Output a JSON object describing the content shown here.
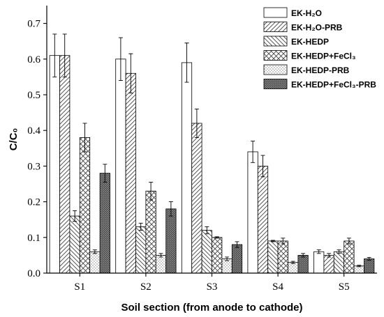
{
  "chart_data": {
    "type": "bar",
    "xlabel": "Soil section (from anode to cathode)",
    "ylabel": "C/C₀",
    "ylim": [
      0,
      0.75
    ],
    "yticks": [
      "0.0",
      "0.1",
      "0.2",
      "0.3",
      "0.4",
      "0.5",
      "0.6",
      "0.7"
    ],
    "categories": [
      "S1",
      "S2",
      "S3",
      "S4",
      "S5"
    ],
    "legend_position": "top-right",
    "series": [
      {
        "name": "EK-H₂O",
        "pattern": "none",
        "values": [
          0.61,
          0.6,
          0.59,
          0.34,
          0.06
        ],
        "errors": [
          0.06,
          0.06,
          0.055,
          0.03,
          0.005
        ]
      },
      {
        "name": "EK-H₂O-PRB",
        "pattern": "diagonal-right",
        "values": [
          0.61,
          0.56,
          0.42,
          0.3,
          0.05
        ],
        "errors": [
          0.06,
          0.055,
          0.04,
          0.03,
          0.005
        ]
      },
      {
        "name": "EK-HEDP",
        "pattern": "diagonal-left",
        "values": [
          0.16,
          0.13,
          0.12,
          0.09,
          0.06
        ],
        "errors": [
          0.015,
          0.01,
          0.01,
          0.002,
          0.005
        ]
      },
      {
        "name": "EK-HEDP+FeCl₃",
        "pattern": "crosshatch",
        "values": [
          0.38,
          0.23,
          0.1,
          0.09,
          0.09
        ],
        "errors": [
          0.04,
          0.025,
          0.002,
          0.008,
          0.008
        ]
      },
      {
        "name": "EK-HEDP-PRB",
        "pattern": "dots",
        "values": [
          0.06,
          0.05,
          0.04,
          0.03,
          0.02
        ],
        "errors": [
          0.005,
          0.005,
          0.005,
          0.003,
          0.002
        ]
      },
      {
        "name": "EK-HEDP+FeCl₃-PRB",
        "pattern": "dense-dots",
        "values": [
          0.28,
          0.18,
          0.08,
          0.05,
          0.04
        ],
        "errors": [
          0.025,
          0.02,
          0.008,
          0.005,
          0.004
        ]
      }
    ]
  }
}
